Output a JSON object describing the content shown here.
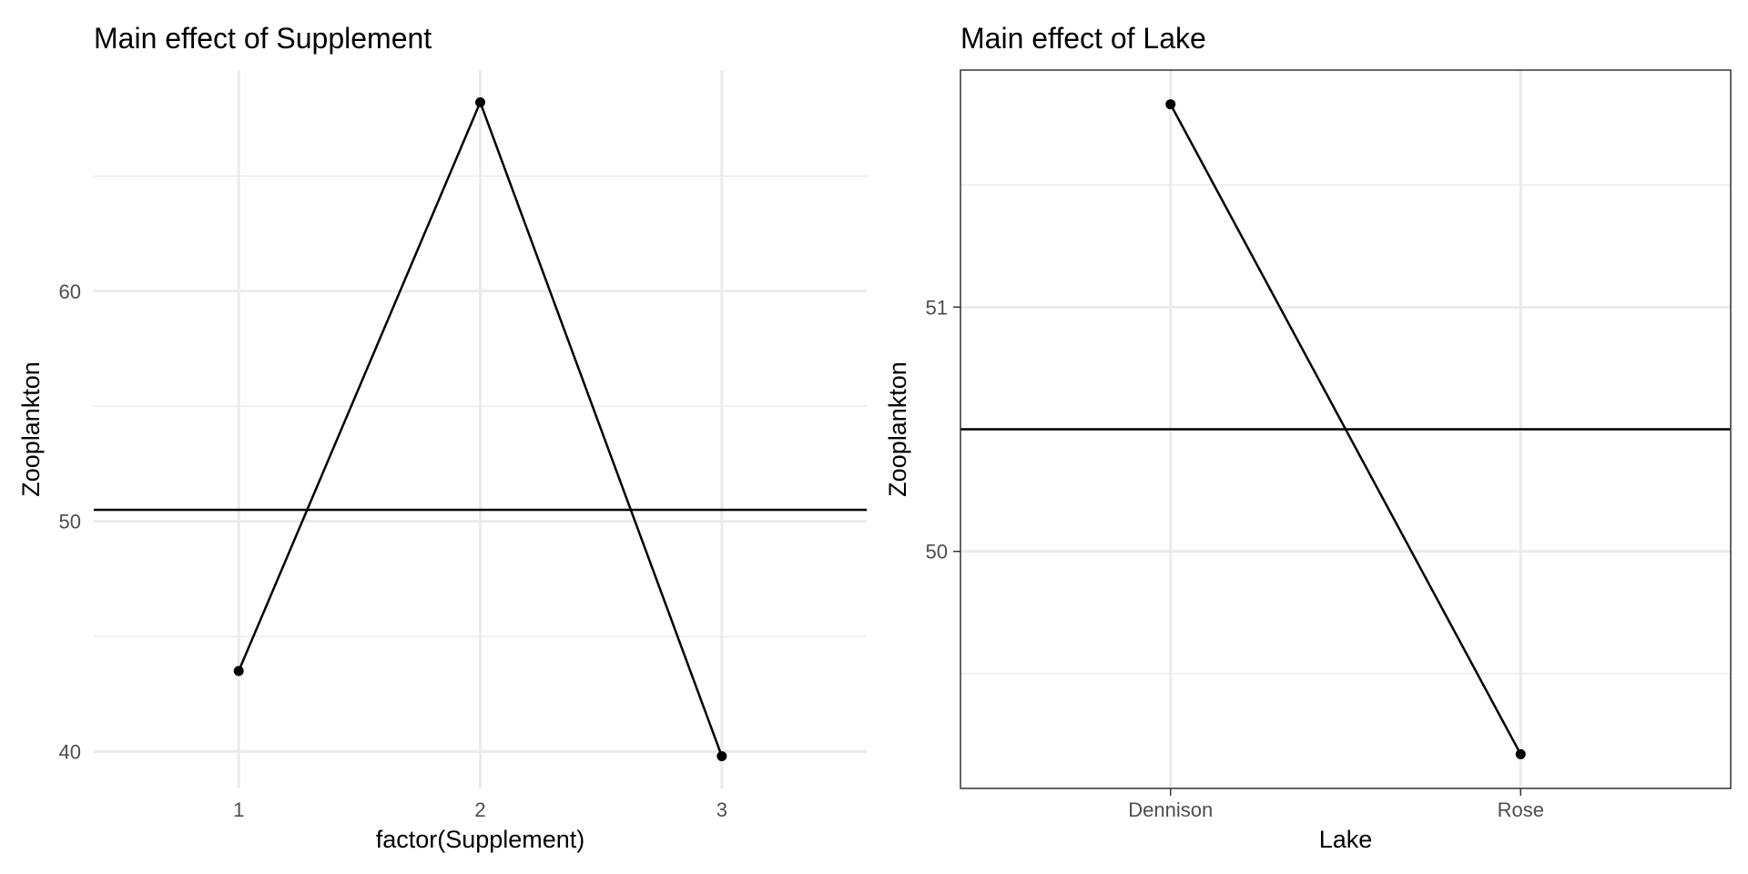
{
  "chart_data": [
    {
      "type": "line",
      "title": "Main effect of Supplement",
      "xlabel": "factor(Supplement)",
      "ylabel": "Zooplankton",
      "categories": [
        "1",
        "2",
        "3"
      ],
      "values": [
        43.5,
        68.2,
        39.8
      ],
      "reference_line": 50.5,
      "ylim": [
        38.4,
        69.6
      ],
      "yticks": [
        40,
        50,
        60
      ],
      "yticks_minor": [
        45,
        55,
        65
      ],
      "panel_border": false,
      "grid": true,
      "line_color": "#000000",
      "grid_color": "#ebebeb"
    },
    {
      "type": "line",
      "title": "Main effect of Lake",
      "xlabel": "Lake",
      "ylabel": "Zooplankton",
      "categories": [
        "Dennison",
        "Rose"
      ],
      "values": [
        51.83,
        49.17
      ],
      "reference_line": 50.5,
      "ylim": [
        49.03,
        51.97
      ],
      "yticks": [
        50,
        51
      ],
      "yticks_minor": [
        49.5,
        50.5,
        51.5
      ],
      "panel_border": true,
      "grid": true,
      "line_color": "#000000",
      "grid_color": "#ebebeb"
    }
  ]
}
